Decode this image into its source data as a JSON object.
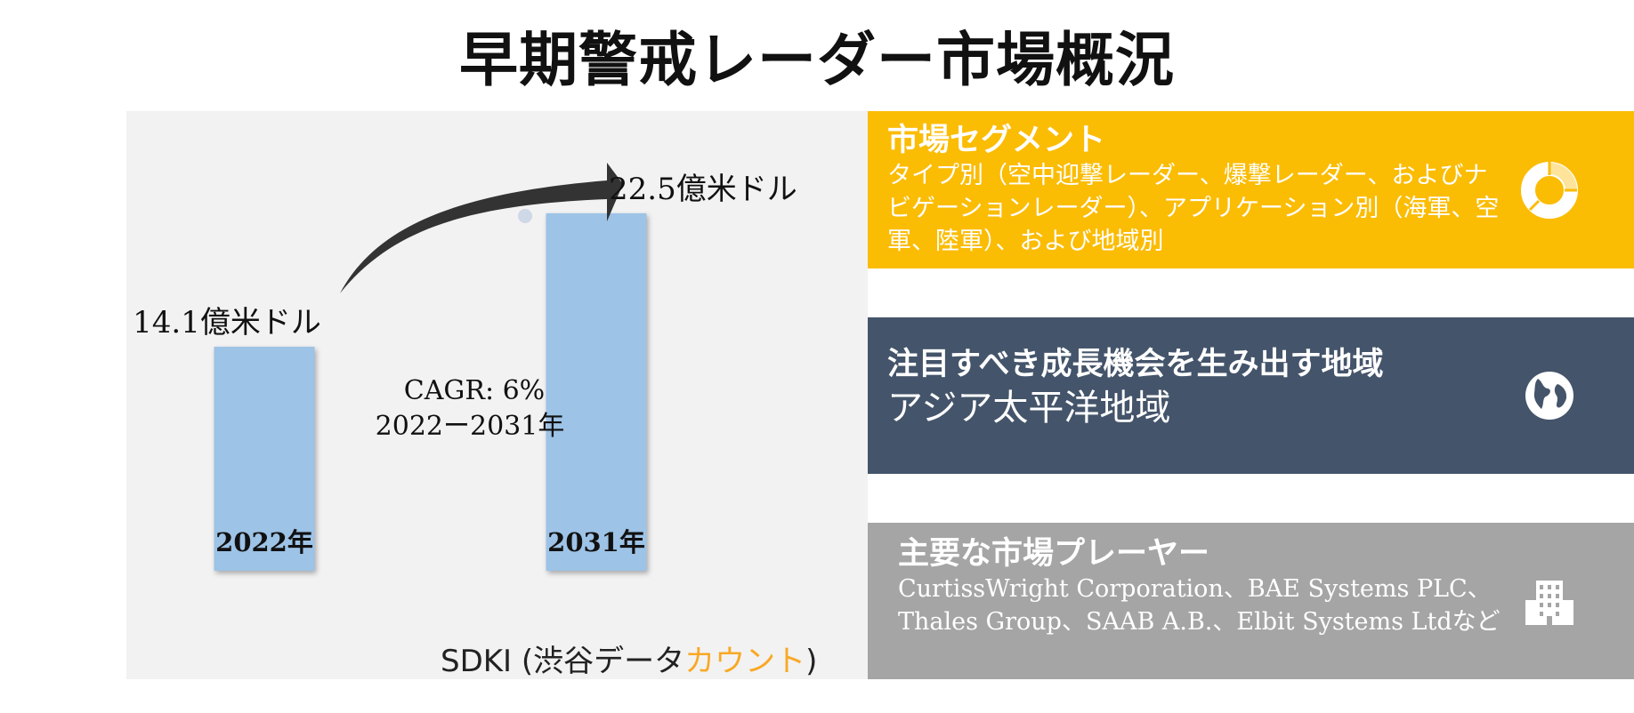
{
  "title": "早期警戒レーダー市場概況",
  "chart_data": {
    "type": "bar",
    "categories": [
      "2022年",
      "2031年"
    ],
    "values": [
      14.1,
      22.5
    ],
    "value_labels": [
      "14.1億米ドル",
      "22.5億米ドル"
    ],
    "unit": "億米ドル",
    "annotation": [
      "CAGR: 6%",
      "2022ー2031年"
    ]
  },
  "source": {
    "prefix": "SDKI (渋谷データ",
    "accent": "カウント",
    "suffix": ")"
  },
  "cards": {
    "segment": {
      "title": "市場セグメント",
      "body": "タイプ別（空中迎撃レーダー、爆撃レーダー、およびナビゲーションレーダー）、アプリケーション別（海軍、空軍、陸軍）、および地域別",
      "icon": "donut-chart-icon"
    },
    "region": {
      "title": "注目すべき成長機会を生み出す地域",
      "value": "アジア太平洋地域",
      "icon": "globe-icon"
    },
    "players": {
      "title": "主要な市場プレーヤー",
      "body": "CurtissWright Corporation、BAE Systems PLC、Thales Group、SAAB A.B.、Elbit Systems Ltdなど",
      "icon": "building-icon"
    }
  },
  "colors": {
    "bar": "#9dc3e6",
    "card_segment": "#fbbc04",
    "card_region": "#44546a",
    "card_players": "#a5a5a5",
    "arrow": "#333333",
    "source_accent": "#f9a825",
    "panel": "#f2f2f2"
  }
}
